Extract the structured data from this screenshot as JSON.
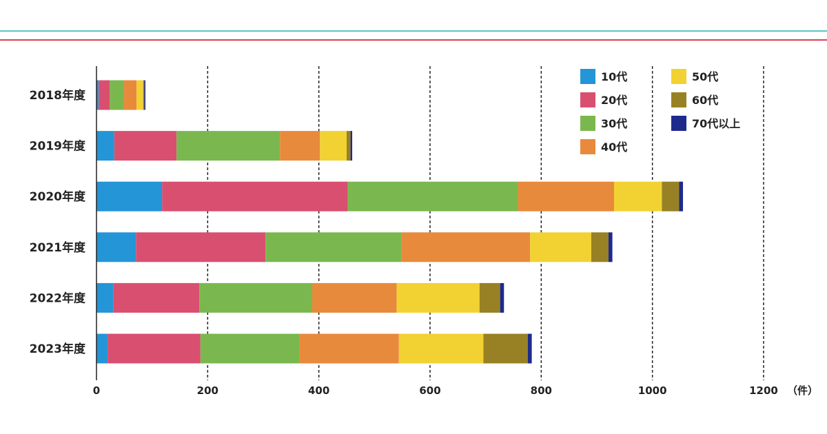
{
  "colors": {
    "top_rule_teal": "#5cc4c0",
    "top_rule_red": "#d9414f",
    "axis": "#222222",
    "grid": "#222222"
  },
  "chart_data": {
    "type": "bar",
    "orientation": "horizontal",
    "stacked": true,
    "categories": [
      "2018年度",
      "2019年度",
      "2020年度",
      "2021年度",
      "2022年度",
      "2023年度"
    ],
    "series": [
      {
        "name": "10代",
        "color": "#2495d6",
        "values": [
          4,
          32,
          118,
          71,
          30,
          20
        ]
      },
      {
        "name": "20代",
        "color": "#d94f70",
        "values": [
          20,
          112,
          334,
          233,
          155,
          167
        ]
      },
      {
        "name": "30代",
        "color": "#7ab84f",
        "values": [
          25,
          186,
          306,
          244,
          203,
          178
        ]
      },
      {
        "name": "40代",
        "color": "#e88a3c",
        "values": [
          23,
          72,
          173,
          232,
          152,
          179
        ]
      },
      {
        "name": "50代",
        "color": "#f2d233",
        "values": [
          12,
          48,
          86,
          110,
          149,
          152
        ]
      },
      {
        "name": "60代",
        "color": "#978124",
        "values": [
          2,
          7,
          31,
          31,
          37,
          80
        ]
      },
      {
        "name": "70代以上",
        "color": "#1e2a8c",
        "values": [
          2,
          3,
          7,
          7,
          7,
          7
        ]
      }
    ],
    "xlim": [
      0,
      1200
    ],
    "xticks": [
      "0",
      "200",
      "400",
      "600",
      "800",
      "1000",
      "1200"
    ],
    "xunit": "（件）",
    "grid": "vertical dashed",
    "legend_position": "top-right"
  }
}
